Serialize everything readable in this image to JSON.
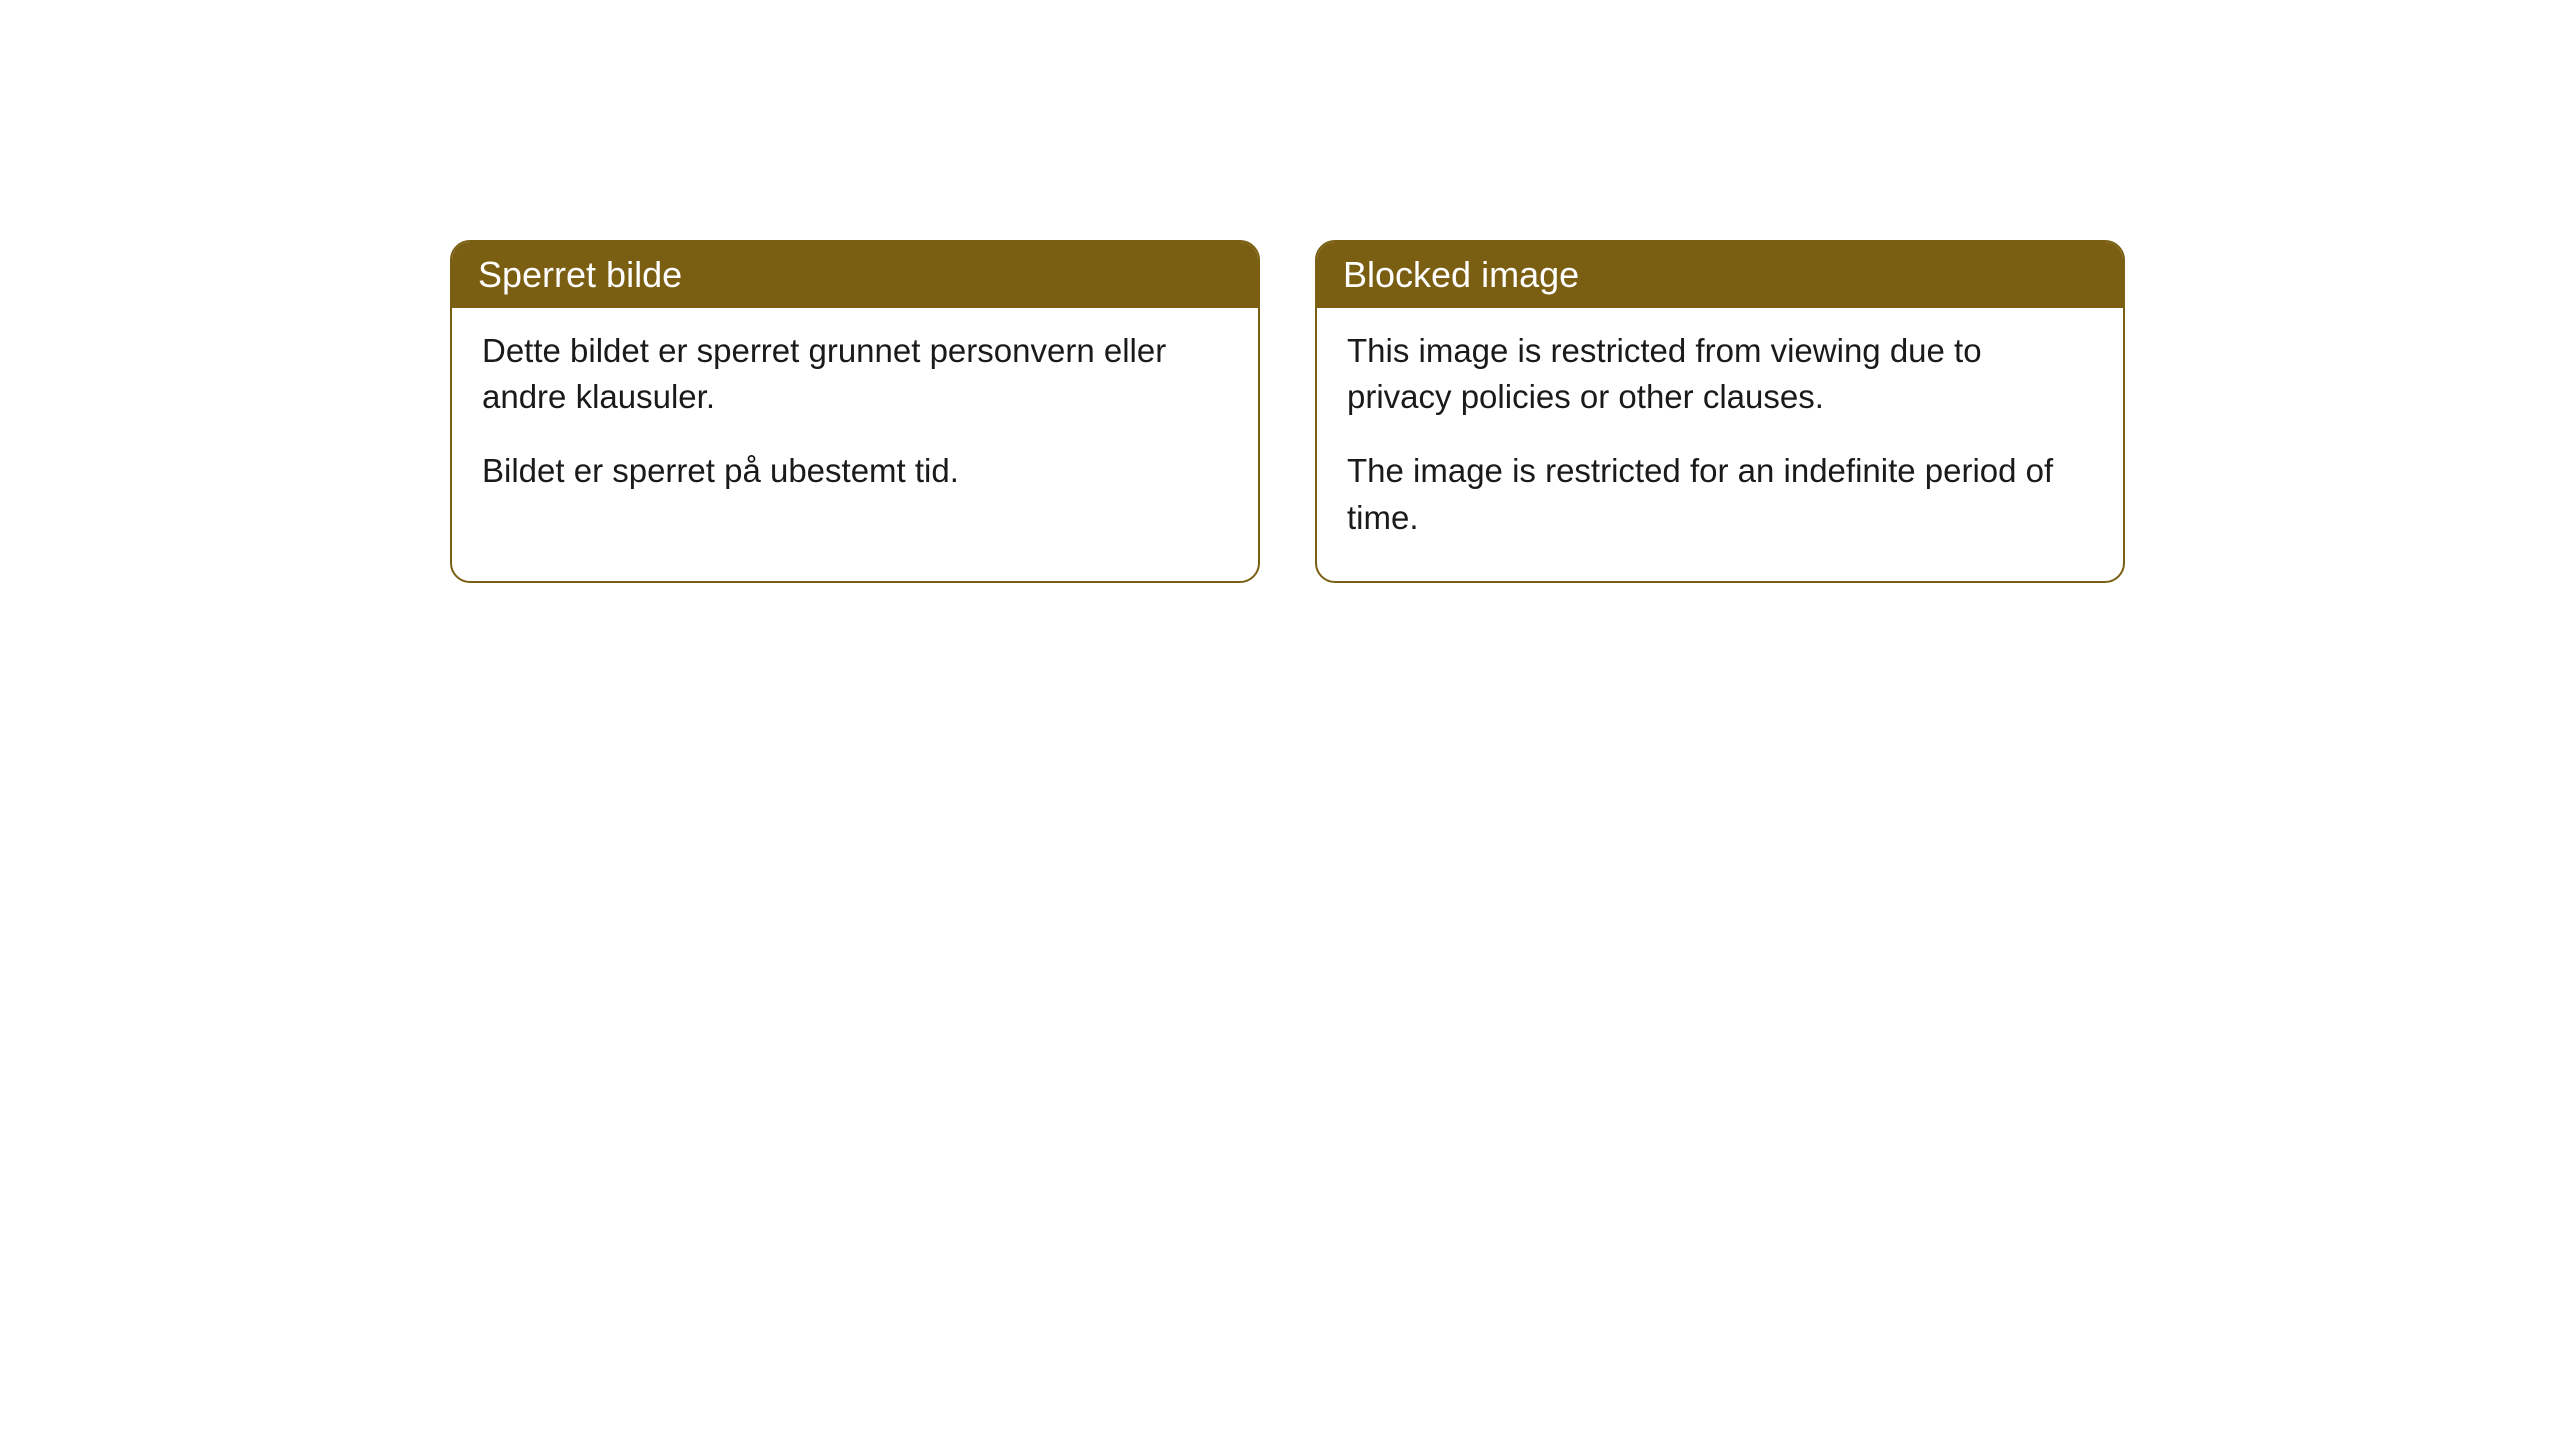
{
  "cards": [
    {
      "header": "Sperret bilde",
      "paragraph1": "Dette bildet er sperret grunnet personvern eller andre klausuler.",
      "paragraph2": "Bildet er sperret på ubestemt tid."
    },
    {
      "header": "Blocked image",
      "paragraph1": "This image is restricted from viewing due to privacy policies or other clauses.",
      "paragraph2": "The image is restricted for an indefinite period of time."
    }
  ],
  "styling": {
    "header_background_color": "#7a5e12",
    "header_text_color": "#ffffff",
    "card_border_color": "#7a5e12",
    "card_border_radius": "20px",
    "card_background_color": "#ffffff",
    "body_text_color": "#1a1a1a",
    "header_font_size": 36,
    "body_font_size": 33
  }
}
